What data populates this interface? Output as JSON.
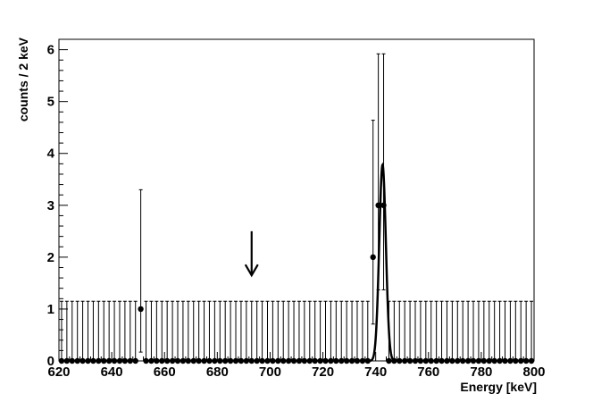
{
  "chart_data": {
    "type": "scatter",
    "title": "",
    "xlabel": "Energy [keV]",
    "ylabel": "counts / 2 keV",
    "xlim": [
      620,
      800
    ],
    "ylim": [
      0,
      6.2
    ],
    "x_ticks": [
      "620",
      "640",
      "660",
      "680",
      "700",
      "720",
      "740",
      "760",
      "780",
      "800"
    ],
    "y_ticks": [
      "0",
      "1",
      "2",
      "3",
      "4",
      "5",
      "6"
    ],
    "grid": false,
    "bin_width": 2,
    "zero_count_upper_error": 1.15,
    "series": [
      {
        "type": "points_with_errors",
        "nonzero_points": [
          {
            "x": 651,
            "y": 1,
            "err_low": 0.83,
            "err_high": 2.3
          },
          {
            "x": 739,
            "y": 2,
            "err_low": 1.29,
            "err_high": 2.64
          },
          {
            "x": 741,
            "y": 3,
            "err_low": 1.63,
            "err_high": 2.92
          },
          {
            "x": 743,
            "y": 3,
            "err_low": 1.63,
            "err_high": 2.92
          }
        ]
      },
      {
        "type": "line",
        "description_shape": "gaussian",
        "peak_x": 742.6,
        "peak_y": 3.78,
        "sigma": 1.25
      }
    ],
    "annotations": [
      {
        "type": "arrow-down",
        "x": 693,
        "y_top": 2.5,
        "y_bottom": 1.65
      }
    ]
  }
}
